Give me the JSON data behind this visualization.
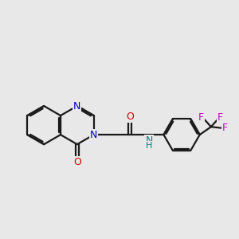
{
  "bg_color": "#e8e8e8",
  "bond_color": "#1a1a1a",
  "N_color": "#0000cc",
  "O_color": "#cc0000",
  "F_color": "#cc00cc",
  "NH_color": "#008080",
  "lw": 1.6,
  "xlim": [
    0.0,
    10.5
  ],
  "ylim": [
    2.0,
    8.5
  ]
}
